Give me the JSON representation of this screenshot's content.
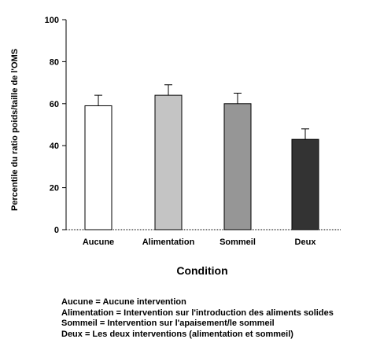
{
  "chart_data": {
    "type": "bar",
    "categories": [
      "Aucune",
      "Alimentation",
      "Sommeil",
      "Deux"
    ],
    "values": [
      59,
      64,
      60,
      43
    ],
    "errors": [
      5,
      5,
      5,
      5
    ],
    "bar_colors": [
      "#ffffff",
      "#c4c4c4",
      "#969696",
      "#333333"
    ],
    "ylim": [
      0,
      100
    ],
    "yticks": [
      0,
      20,
      40,
      60,
      80,
      100
    ],
    "ylabel": "Percentile du ratio poids/taille de l'OMS",
    "xlabel": "Condition",
    "grid": false,
    "legend_placement": "bottom-left"
  },
  "legend_lines": [
    "Aucune = Aucune intervention",
    "Alimentation = Intervention sur l'introduction  des aliments solides",
    "Sommeil = Intervention sur l'apaisement/le sommeil",
    "Deux = Les deux interventions (alimentation et sommeil)"
  ]
}
